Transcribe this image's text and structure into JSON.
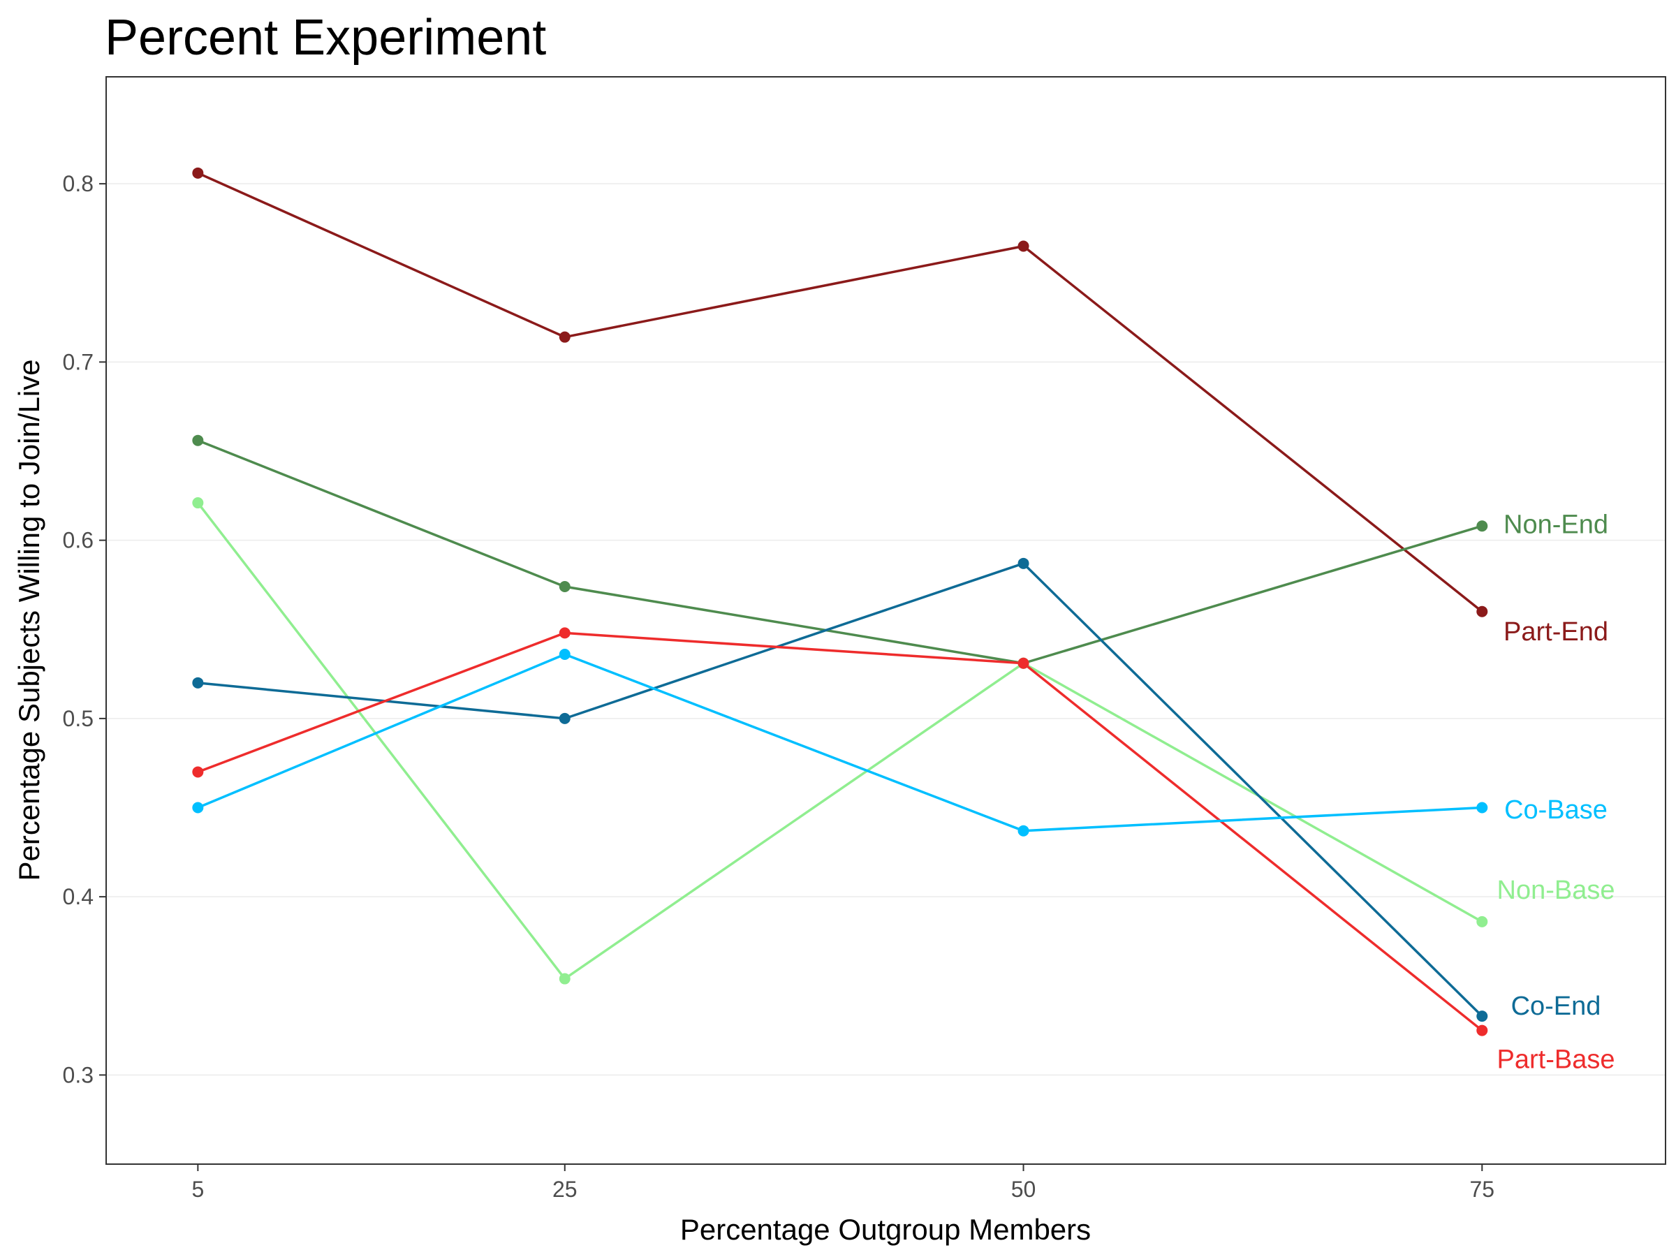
{
  "chart_data": {
    "type": "line",
    "title": "Percent Experiment",
    "xlabel": "Percentage Outgroup Members",
    "ylabel": "Percentage Subjects Willing to Join/Live",
    "x": [
      5,
      25,
      50,
      75
    ],
    "x_tick_labels": [
      "5",
      "25",
      "50",
      "75"
    ],
    "y_ticks": [
      0.3,
      0.4,
      0.5,
      0.6,
      0.7,
      0.8
    ],
    "y_tick_labels": [
      "0.3",
      "0.4",
      "0.5",
      "0.6",
      "0.7",
      "0.8"
    ],
    "ylim": [
      0.25,
      0.86
    ],
    "grid": "major y lines, light grey",
    "legend": "direct labels at right end of lines",
    "series": [
      {
        "name": "Part-End",
        "color": "#8b1a1a",
        "values": [
          0.806,
          0.714,
          0.765,
          0.56
        ],
        "label_y": 0.549
      },
      {
        "name": "Non-End",
        "color": "#4e8b4e",
        "values": [
          0.656,
          0.574,
          0.531,
          0.608
        ],
        "label_y": 0.609
      },
      {
        "name": "Non-Base",
        "color": "#90ee90",
        "values": [
          0.621,
          0.354,
          0.531,
          0.386
        ],
        "label_y": 0.404
      },
      {
        "name": "Co-End",
        "color": "#0e6b96",
        "values": [
          0.52,
          0.5,
          0.587,
          0.333
        ],
        "label_y": 0.339
      },
      {
        "name": "Part-Base",
        "color": "#ee2c2c",
        "values": [
          0.47,
          0.548,
          0.531,
          0.325
        ],
        "label_y": 0.309
      },
      {
        "name": "Co-Base",
        "color": "#00bfff",
        "values": [
          0.45,
          0.536,
          0.437,
          0.45
        ],
        "label_y": 0.449
      }
    ]
  }
}
